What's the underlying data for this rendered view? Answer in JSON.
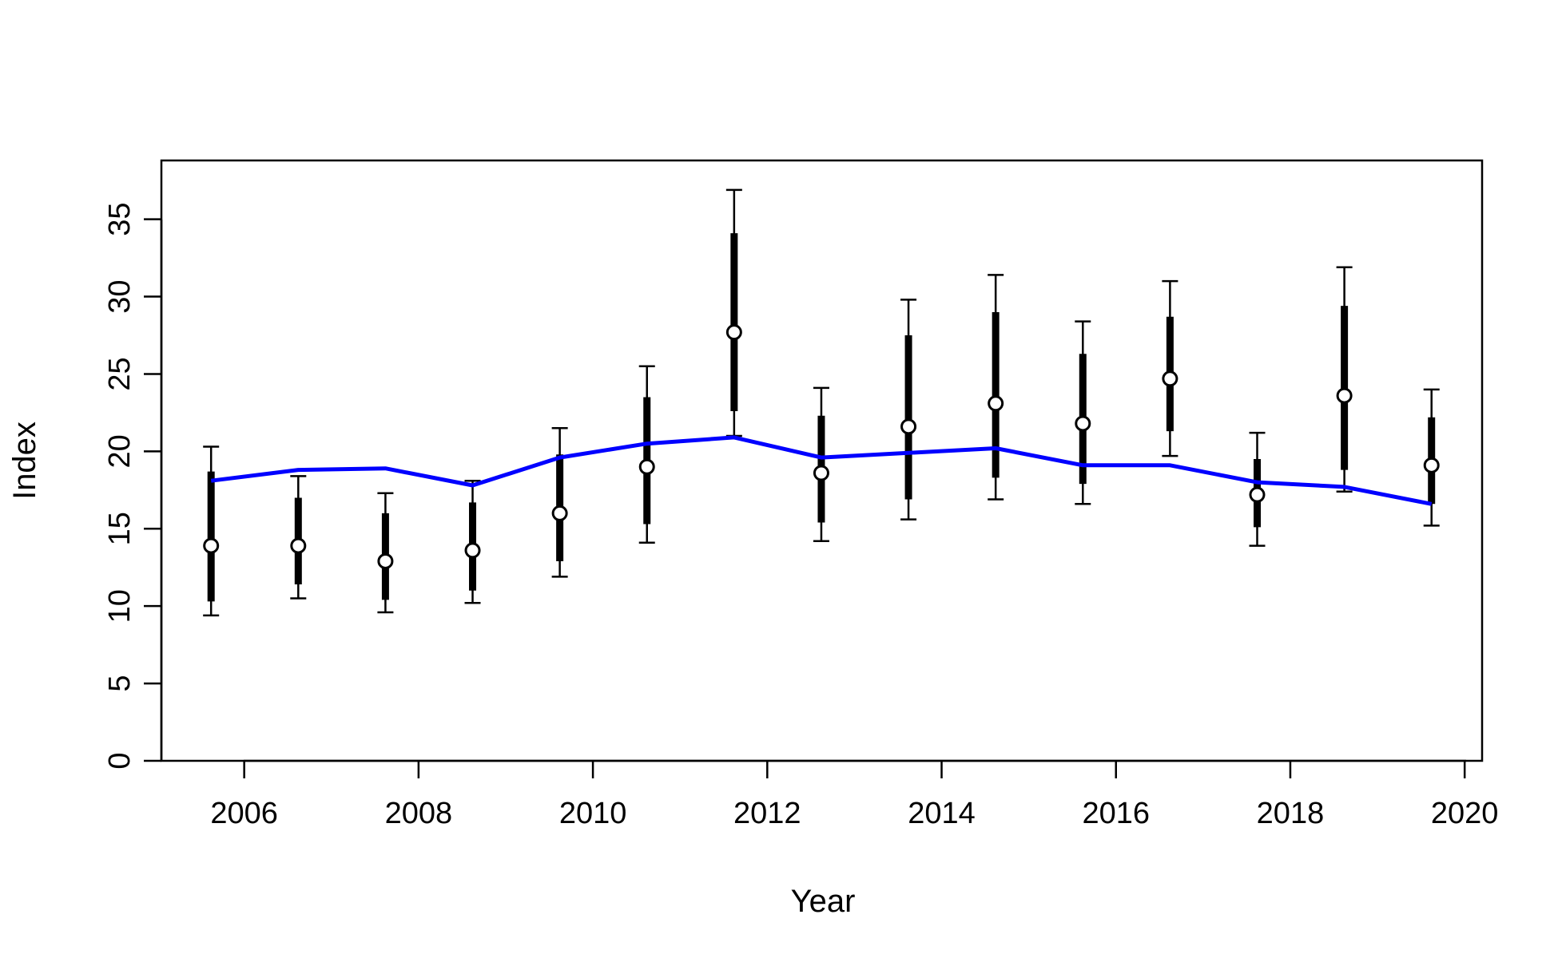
{
  "chart_data": {
    "type": "scatter",
    "title": "",
    "xlabel": "Year",
    "ylabel": "Index",
    "xlim": [
      2005.05,
      2020.2
    ],
    "ylim": [
      0,
      38.8
    ],
    "xticks": [
      2006,
      2008,
      2010,
      2012,
      2014,
      2016,
      2018,
      2020
    ],
    "yticks": [
      0,
      5,
      10,
      15,
      20,
      25,
      30,
      35
    ],
    "grid": false,
    "legend": "none",
    "x": [
      2005.62,
      2006.62,
      2007.62,
      2008.62,
      2009.62,
      2010.62,
      2011.62,
      2012.62,
      2013.62,
      2014.62,
      2015.62,
      2016.62,
      2017.62,
      2018.62,
      2019.62
    ],
    "series": [
      {
        "kind": "observed",
        "marker": "open-circle",
        "values": [
          13.9,
          13.9,
          12.9,
          13.6,
          16.0,
          19.0,
          27.7,
          18.6,
          21.6,
          23.1,
          21.8,
          24.7,
          17.2,
          23.6,
          19.1
        ],
        "inner_lower": [
          10.3,
          11.4,
          10.4,
          11.0,
          12.9,
          15.3,
          22.6,
          15.4,
          16.9,
          18.3,
          17.9,
          21.3,
          15.1,
          18.8,
          16.6
        ],
        "inner_upper": [
          18.7,
          17.0,
          16.0,
          16.7,
          19.8,
          23.5,
          34.1,
          22.3,
          27.5,
          29.0,
          26.3,
          28.7,
          19.5,
          29.4,
          22.2
        ],
        "outer_lower": [
          9.4,
          10.5,
          9.6,
          10.2,
          11.9,
          14.1,
          21.0,
          14.2,
          15.6,
          16.9,
          16.6,
          19.7,
          13.9,
          17.4,
          15.2
        ],
        "outer_upper": [
          20.3,
          18.4,
          17.3,
          18.1,
          21.5,
          25.5,
          36.9,
          24.1,
          29.8,
          31.4,
          28.4,
          31.0,
          21.2,
          31.9,
          24.0
        ]
      },
      {
        "kind": "fitted",
        "color": "#0000ff",
        "values": [
          18.1,
          18.8,
          18.9,
          17.8,
          19.6,
          20.5,
          20.9,
          19.6,
          19.9,
          20.2,
          19.1,
          19.1,
          18.0,
          17.7,
          16.6
        ]
      }
    ]
  },
  "colors": {
    "axis": "#000000",
    "errorbar": "#000000",
    "marker_fill": "#ffffff",
    "fit_line": "#0000ff"
  }
}
